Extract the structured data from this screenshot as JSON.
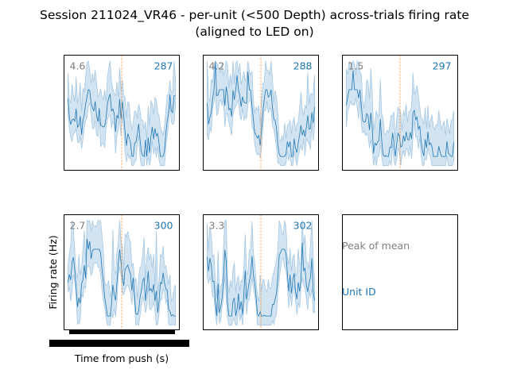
{
  "title_line1": "Session 211024_VR46 - per-unit (<500 Depth) across-trials firing rate",
  "title_line2": "(aligned to LED on)",
  "xlabel": "Time from push (s)",
  "ylabel": "Firing rate (Hz)",
  "legend": {
    "peak_label": "Peak of mean",
    "unit_label": "Unit ID"
  },
  "colors": {
    "line": "#1f77b4",
    "band": "#a6c8e3",
    "event": "#ff7f0e",
    "peak_text": "#808080",
    "unit_text": "#1f77b4"
  },
  "chart_data": [
    {
      "type": "area",
      "unit_id": "287",
      "peak": "4.6",
      "seed": 11
    },
    {
      "type": "area",
      "unit_id": "288",
      "peak": "4.2",
      "seed": 23
    },
    {
      "type": "area",
      "unit_id": "297",
      "peak": "1.5",
      "seed": 37
    },
    {
      "type": "area",
      "unit_id": "300",
      "peak": "2.7",
      "seed": 51
    },
    {
      "type": "area",
      "unit_id": "302",
      "peak": "3.3",
      "seed": 67
    }
  ]
}
